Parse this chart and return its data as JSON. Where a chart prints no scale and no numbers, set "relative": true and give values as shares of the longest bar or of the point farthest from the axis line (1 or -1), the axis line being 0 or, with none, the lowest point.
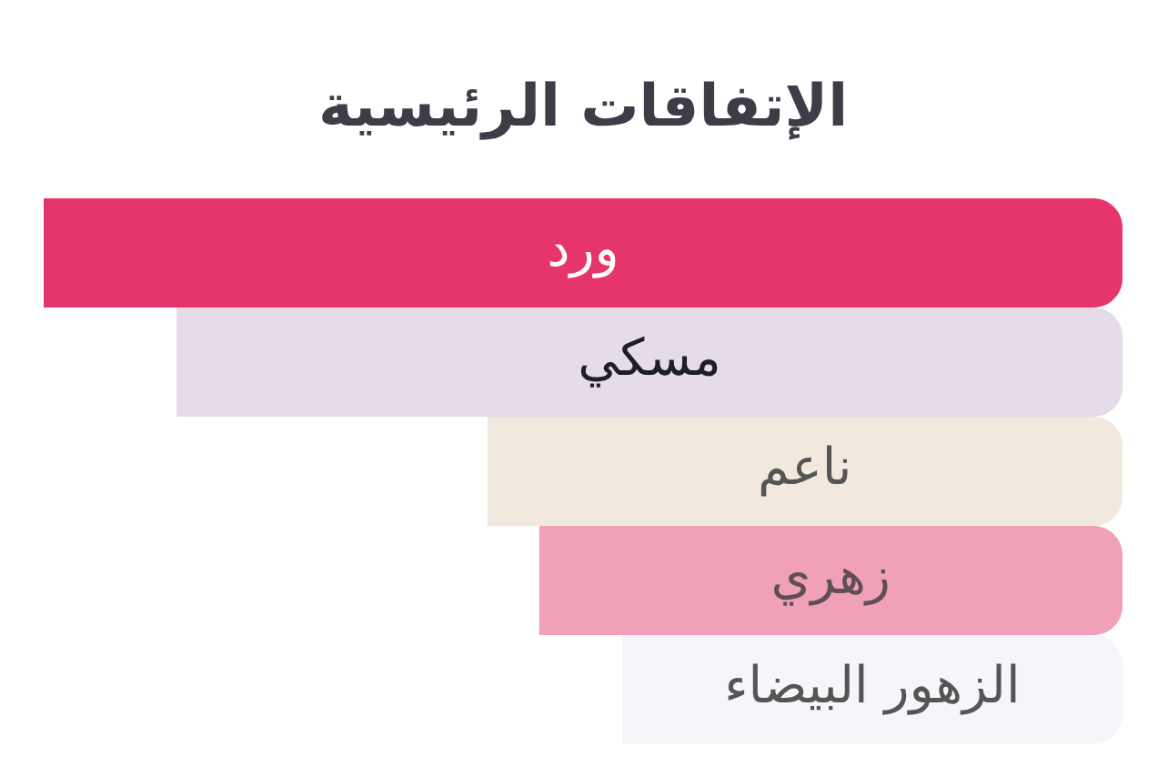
{
  "chart_data": {
    "type": "bar",
    "title": "الإتفاقات الرئيسية",
    "orientation": "horizontal",
    "relative": true,
    "categories": [
      "ورد",
      "مسكي",
      "ناعم",
      "زهري",
      "الزهور البيضاء"
    ],
    "values": [
      1,
      0.877,
      0.589,
      0.541,
      0.464
    ],
    "colors": [
      "#e6346c",
      "#e6dbe9",
      "#f2e9de",
      "#f0a0b7",
      "#f5f6fa"
    ]
  }
}
